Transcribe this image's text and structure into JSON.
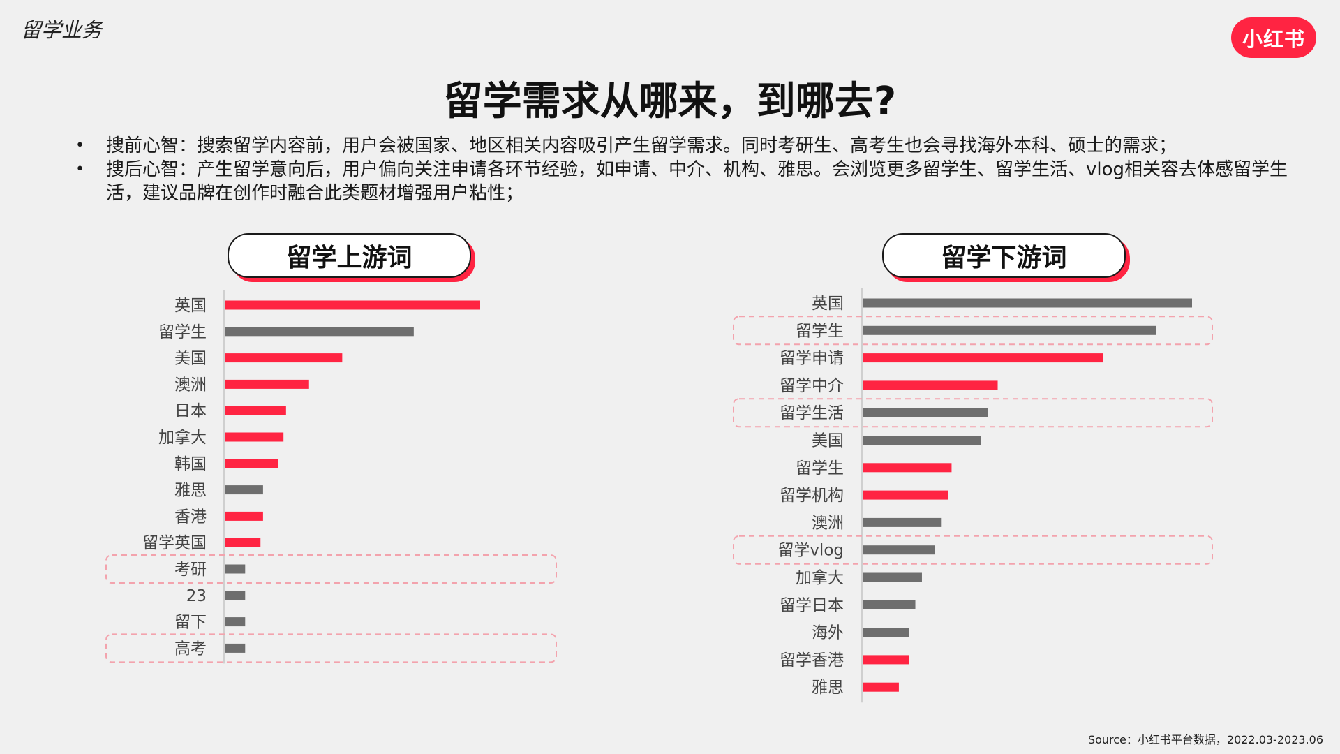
{
  "header": {
    "section_label": "留学业务",
    "logo_text": "小红书",
    "title": "留学需求从哪来，到哪去?"
  },
  "bullets": [
    "搜前心智：搜索留学内容前，用户会被国家、地区相关内容吸引产生留学需求。同时考研生、高考生也会寻找海外本科、硕士的需求；",
    "搜后心智：产生留学意向后，用户偏向关注申请各环节经验，如申请、中介、机构、雅思。会浏览更多留学生、留学生活、vlog相关容去体感留学生活，建议品牌在创作时融合此类题材增强用户粘性；"
  ],
  "colors": {
    "accent": "#ff2442",
    "neutral": "#6e6e6e"
  },
  "chart_data": [
    {
      "type": "bar",
      "orientation": "horizontal",
      "title": "留学上游词",
      "categories": [
        "英国",
        "留学生",
        "美国",
        "澳洲",
        "日本",
        "加拿大",
        "韩国",
        "雅思",
        "香港",
        "留学英国",
        "考研",
        "23",
        "留下",
        "高考"
      ],
      "values": [
        100,
        74,
        46,
        33,
        24,
        23,
        21,
        15,
        15,
        14,
        8,
        8,
        8,
        8
      ],
      "highlight": [
        "red",
        "gray",
        "red",
        "red",
        "red",
        "red",
        "red",
        "gray",
        "red",
        "red",
        "gray",
        "gray",
        "gray",
        "gray"
      ],
      "boxed": [
        "考研",
        "高考"
      ]
    },
    {
      "type": "bar",
      "orientation": "horizontal",
      "title": "留学下游词",
      "categories": [
        "英国",
        "留学生",
        "留学申请",
        "留学中介",
        "留学生活",
        "美国",
        "留学生",
        "留学机构",
        "澳洲",
        "留学vlog",
        "加拿大",
        "留学日本",
        "海外",
        "留学香港",
        "雅思"
      ],
      "values": [
        100,
        89,
        73,
        41,
        38,
        36,
        27,
        26,
        24,
        22,
        18,
        16,
        14,
        14,
        11
      ],
      "highlight": [
        "gray",
        "gray",
        "red",
        "red",
        "gray",
        "gray",
        "red",
        "red",
        "gray",
        "gray",
        "gray",
        "gray",
        "gray",
        "red",
        "red"
      ],
      "boxed": [
        "留学生",
        "留学生活",
        "留学vlog"
      ]
    }
  ],
  "footer": {
    "source": "Source：小红书平台数据，2022.03-2023.06"
  }
}
